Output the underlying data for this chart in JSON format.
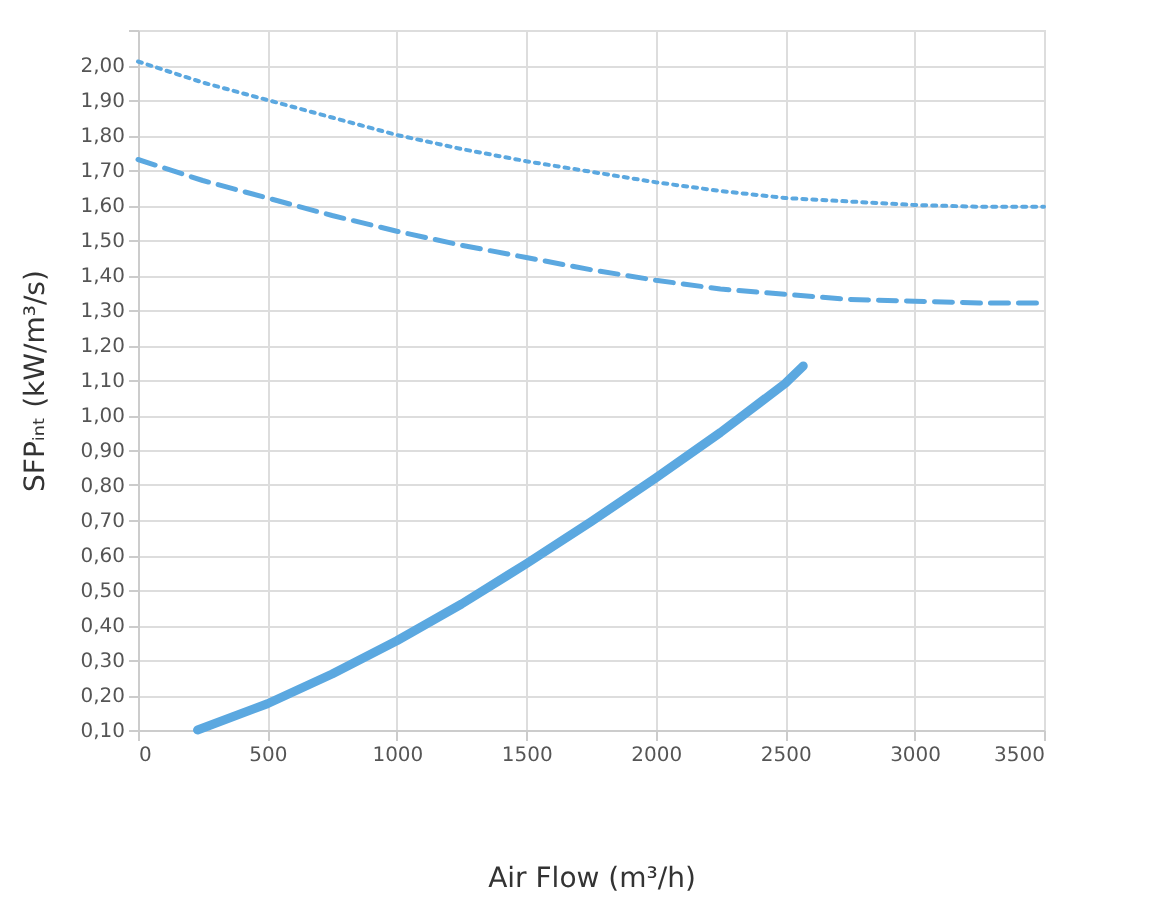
{
  "chart_data": {
    "type": "line",
    "xlabel": "Air Flow (m³/h)",
    "ylabel": "SFPᵢₙₜ (kW/m³/s)",
    "xlim": [
      0,
      3500
    ],
    "xticks": [
      0,
      500,
      1000,
      1500,
      2000,
      2500,
      3000,
      3500
    ],
    "ylim": [
      0.1,
      2.1
    ],
    "yticks": [
      {
        "value": 0.1,
        "label": "0,10"
      },
      {
        "value": 0.2,
        "label": "0,20"
      },
      {
        "value": 0.3,
        "label": "0,30"
      },
      {
        "value": 0.4,
        "label": "0,40"
      },
      {
        "value": 0.5,
        "label": "0,50"
      },
      {
        "value": 0.6,
        "label": "0,60"
      },
      {
        "value": 0.7,
        "label": "0,70"
      },
      {
        "value": 0.8,
        "label": "0,80"
      },
      {
        "value": 0.9,
        "label": "0,90"
      },
      {
        "value": 1.0,
        "label": "1,00"
      },
      {
        "value": 1.1,
        "label": "1,10"
      },
      {
        "value": 1.2,
        "label": "1,20"
      },
      {
        "value": 1.3,
        "label": "1,30"
      },
      {
        "value": 1.4,
        "label": "1,40"
      },
      {
        "value": 1.5,
        "label": "1,50"
      },
      {
        "value": 1.6,
        "label": "1,60"
      },
      {
        "value": 1.7,
        "label": "1,70"
      },
      {
        "value": 1.8,
        "label": "1,80"
      },
      {
        "value": 1.9,
        "label": "1,90"
      },
      {
        "value": 2.0,
        "label": "2,00"
      },
      {
        "value": 2.1,
        "label": null
      }
    ],
    "grid": true,
    "legend": false,
    "series": [
      {
        "color": "#5ba8e0",
        "line_style": "dotted",
        "x": [
          0,
          250,
          500,
          750,
          1000,
          1250,
          1500,
          1750,
          2000,
          2250,
          2500,
          2750,
          3000,
          3250,
          3500
        ],
        "values": [
          2.01,
          1.95,
          1.9,
          1.85,
          1.8,
          1.76,
          1.725,
          1.695,
          1.665,
          1.64,
          1.62,
          1.61,
          1.6,
          1.595,
          1.595
        ]
      },
      {
        "color": "#5ba8e0",
        "line_style": "dashed",
        "x": [
          0,
          250,
          500,
          750,
          1000,
          1250,
          1500,
          1750,
          2000,
          2250,
          2500,
          2750,
          3000,
          3250,
          3500
        ],
        "values": [
          1.73,
          1.67,
          1.62,
          1.57,
          1.525,
          1.485,
          1.45,
          1.415,
          1.385,
          1.36,
          1.345,
          1.33,
          1.325,
          1.32,
          1.32
        ]
      },
      {
        "color": "#5ba8e0",
        "line_style": "solid",
        "x": [
          230,
          500,
          750,
          1000,
          1250,
          1500,
          1750,
          2000,
          2250,
          2500,
          2570
        ],
        "values": [
          0.1,
          0.175,
          0.26,
          0.355,
          0.46,
          0.575,
          0.695,
          0.82,
          0.95,
          1.09,
          1.14
        ]
      }
    ]
  }
}
